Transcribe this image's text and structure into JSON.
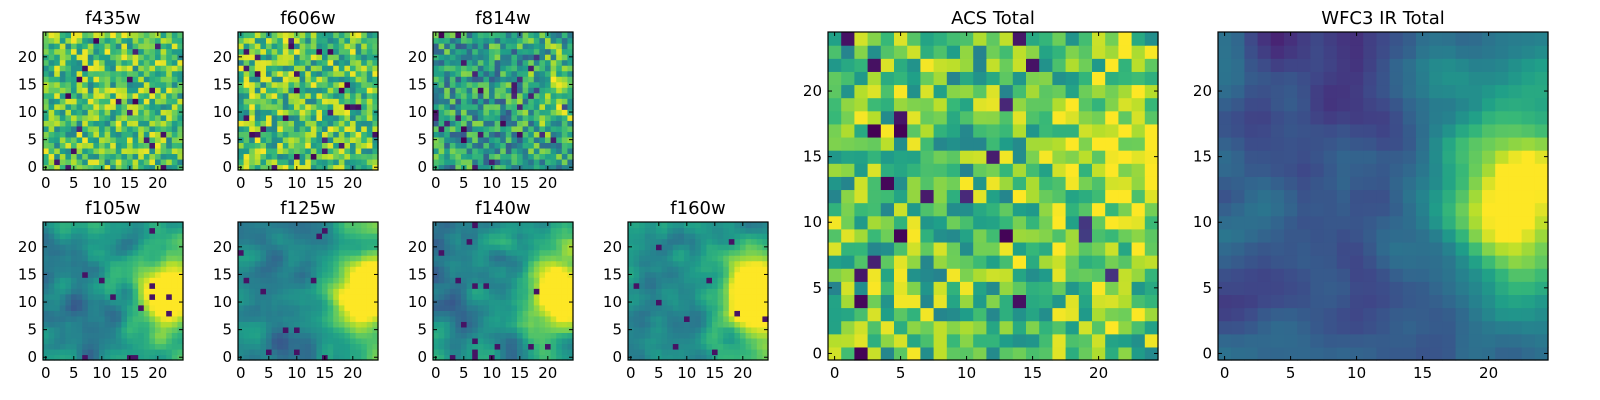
{
  "figure": {
    "description_free": true
  },
  "colors": {
    "viridis": [
      "#440154",
      "#482878",
      "#3e4989",
      "#31688e",
      "#26828e",
      "#1f9e89",
      "#35b779",
      "#6ece58",
      "#b5de2b",
      "#fde725"
    ]
  },
  "chart_data": [
    {
      "type": "heatmap",
      "title": "f435w",
      "grid_size": 25,
      "x_ticks": [
        0,
        5,
        10,
        15,
        20
      ],
      "y_ticks": [
        0,
        5,
        10,
        15,
        20
      ],
      "xlim": [
        -0.5,
        24.5
      ],
      "ylim": [
        -0.5,
        24.5
      ],
      "colormap": "viridis",
      "pattern": "noise-bright"
    },
    {
      "type": "heatmap",
      "title": "f606w",
      "grid_size": 25,
      "x_ticks": [
        0,
        5,
        10,
        15,
        20
      ],
      "y_ticks": [
        0,
        5,
        10,
        15,
        20
      ],
      "xlim": [
        -0.5,
        24.5
      ],
      "ylim": [
        -0.5,
        24.5
      ],
      "colormap": "viridis",
      "pattern": "noise-bright"
    },
    {
      "type": "heatmap",
      "title": "f814w",
      "grid_size": 25,
      "x_ticks": [
        0,
        5,
        10,
        15,
        20
      ],
      "y_ticks": [
        0,
        5,
        10,
        15,
        20
      ],
      "xlim": [
        -0.5,
        24.5
      ],
      "ylim": [
        -0.5,
        24.5
      ],
      "colormap": "viridis",
      "pattern": "noise-mid"
    },
    {
      "type": "heatmap",
      "title": "f105w",
      "grid_size": 25,
      "x_ticks": [
        0,
        5,
        10,
        15,
        20
      ],
      "y_ticks": [
        0,
        5,
        10,
        15,
        20
      ],
      "xlim": [
        -0.5,
        24.5
      ],
      "ylim": [
        -0.5,
        24.5
      ],
      "colormap": "viridis",
      "pattern": "smooth-right"
    },
    {
      "type": "heatmap",
      "title": "f125w",
      "grid_size": 25,
      "x_ticks": [
        0,
        5,
        10,
        15,
        20
      ],
      "y_ticks": [
        0,
        5,
        10,
        15,
        20
      ],
      "xlim": [
        -0.5,
        24.5
      ],
      "ylim": [
        -0.5,
        24.5
      ],
      "colormap": "viridis",
      "pattern": "smooth-right"
    },
    {
      "type": "heatmap",
      "title": "f140w",
      "grid_size": 25,
      "x_ticks": [
        0,
        5,
        10,
        15,
        20
      ],
      "y_ticks": [
        0,
        5,
        10,
        15,
        20
      ],
      "xlim": [
        -0.5,
        24.5
      ],
      "ylim": [
        -0.5,
        24.5
      ],
      "colormap": "viridis",
      "pattern": "smooth-right"
    },
    {
      "type": "heatmap",
      "title": "f160w",
      "grid_size": 25,
      "x_ticks": [
        0,
        5,
        10,
        15,
        20
      ],
      "y_ticks": [
        0,
        5,
        10,
        15,
        20
      ],
      "xlim": [
        -0.5,
        24.5
      ],
      "ylim": [
        -0.5,
        24.5
      ],
      "colormap": "viridis",
      "pattern": "smooth-right"
    },
    {
      "type": "heatmap",
      "title": "ACS Total",
      "grid_size": 25,
      "x_ticks": [
        0,
        5,
        10,
        15,
        20
      ],
      "y_ticks": [
        0,
        5,
        10,
        15,
        20
      ],
      "xlim": [
        -0.5,
        24.5
      ],
      "ylim": [
        -0.5,
        24.5
      ],
      "colormap": "viridis",
      "pattern": "noise-bright-right"
    },
    {
      "type": "heatmap",
      "title": "WFC3 IR Total",
      "grid_size": 25,
      "x_ticks": [
        0,
        5,
        10,
        15,
        20
      ],
      "y_ticks": [
        0,
        5,
        10,
        15,
        20
      ],
      "xlim": [
        -0.5,
        24.5
      ],
      "ylim": [
        -0.5,
        24.5
      ],
      "colormap": "viridis",
      "pattern": "smooth-dark-right"
    }
  ]
}
